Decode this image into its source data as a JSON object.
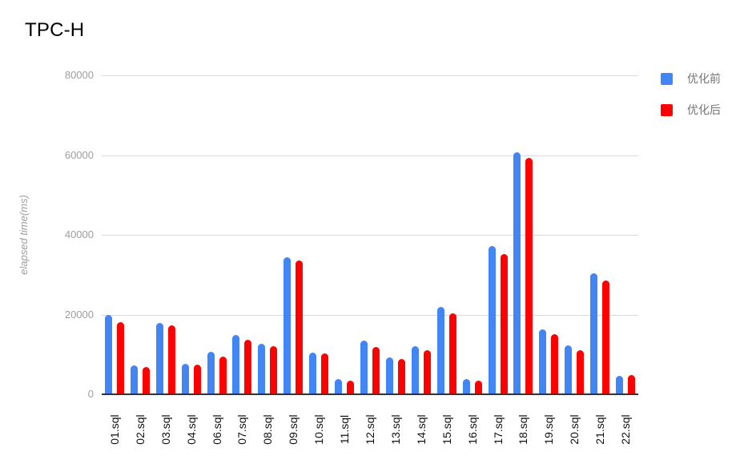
{
  "chart": {
    "title": "TPC-H",
    "ylabel": "elapsed time(ms)"
  },
  "chart_data": {
    "type": "bar",
    "title": "TPC-H",
    "xlabel": "",
    "ylabel": "elapsed time(ms)",
    "ylim": [
      0,
      80000
    ],
    "ytick_step": 20000,
    "grid": "horizontal gridlines on",
    "legend_position": "top-right",
    "bar_corner": "rounded-top",
    "categories": [
      "01.sql",
      "02.sql",
      "03.sql",
      "04.sql",
      "06.sql",
      "07.sql",
      "08.sql",
      "09.sql",
      "10.sql",
      "11.sql",
      "12.sql",
      "13.sql",
      "14.sql",
      "15.sql",
      "16.sql",
      "17.sql",
      "18.sql",
      "19.sql",
      "20.sql",
      "21.sql",
      "22.sql"
    ],
    "series": [
      {
        "name": "优化前",
        "color": "#4285f4",
        "values": [
          19800,
          7300,
          17800,
          7600,
          10700,
          14900,
          12700,
          34300,
          10500,
          3800,
          13400,
          9300,
          12100,
          22000,
          3800,
          37200,
          60700,
          16300,
          12200,
          30300,
          4700
        ]
      },
      {
        "name": "优化后",
        "color": "#ff0000",
        "values": [
          18000,
          6900,
          17200,
          7400,
          9400,
          13700,
          12100,
          33500,
          10300,
          3400,
          11900,
          8900,
          11000,
          20400,
          3400,
          35200,
          59300,
          15000,
          11000,
          28600,
          4850
        ]
      }
    ]
  },
  "colors": {
    "background": "#ffffff",
    "gridline": "#d9d9d9",
    "axis_baseline": "#333333",
    "ytick_text": "#9e9e9e",
    "xtick_text": "#111111",
    "title_text": "#000000",
    "legend_text": "#757575"
  }
}
